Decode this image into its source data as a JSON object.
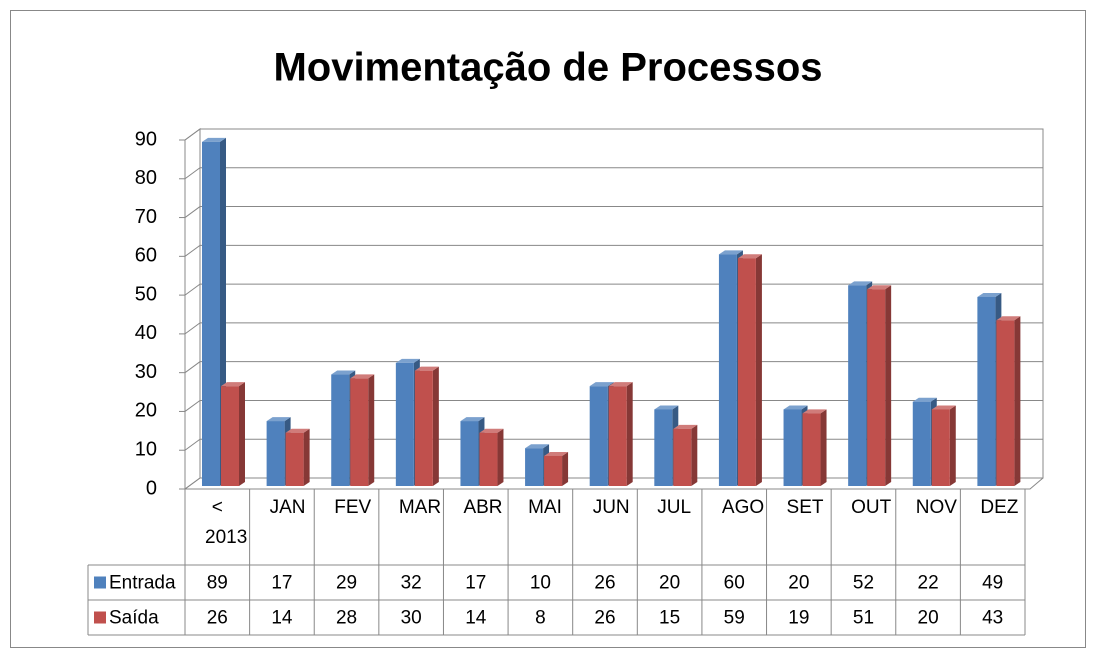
{
  "chart_data": {
    "type": "bar",
    "title": "Movimentação de Processos",
    "categories": [
      "< 2013",
      "JAN",
      "FEV",
      "MAR",
      "ABR",
      "MAI",
      "JUN",
      "JUL",
      "AGO",
      "SET",
      "OUT",
      "NOV",
      "DEZ"
    ],
    "series": [
      {
        "name": "Entrada",
        "color": "#4f81bd",
        "values": [
          89,
          17,
          29,
          32,
          17,
          10,
          26,
          20,
          60,
          20,
          52,
          22,
          49
        ]
      },
      {
        "name": "Saída",
        "color": "#c0504d",
        "values": [
          26,
          14,
          28,
          30,
          14,
          8,
          26,
          15,
          59,
          19,
          51,
          20,
          43
        ]
      }
    ],
    "ylim": [
      0,
      90
    ],
    "yticks": [
      0,
      10,
      20,
      30,
      40,
      50,
      60,
      70,
      80,
      90
    ],
    "grid": true
  }
}
